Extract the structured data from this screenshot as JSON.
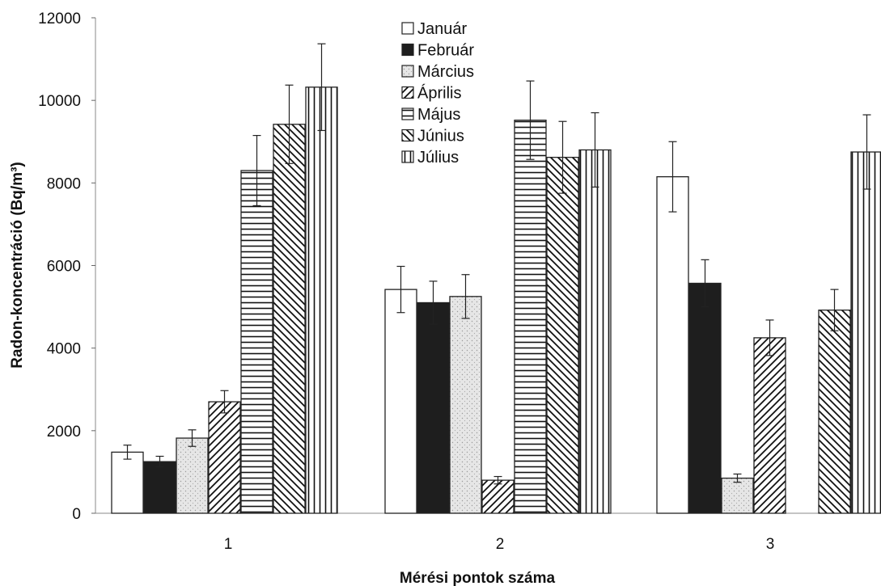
{
  "chart_data": {
    "type": "bar",
    "xlabel": "Mérési pontok száma",
    "ylabel": "Radon-koncentráció (Bq/m³)",
    "ylim": [
      0,
      12000
    ],
    "yticks": [
      "0",
      "2000",
      "4000",
      "6000",
      "8000",
      "10000",
      "12000"
    ],
    "categories": [
      "1",
      "2",
      "3"
    ],
    "legend_position": "top-center",
    "error_bars": true,
    "series": [
      {
        "name": "Január",
        "pattern": "white",
        "values": [
          1480,
          5420,
          8150
        ],
        "errors": [
          170,
          560,
          850
        ]
      },
      {
        "name": "Február",
        "pattern": "black",
        "values": [
          1250,
          5100,
          5570
        ],
        "errors": [
          130,
          520,
          570
        ]
      },
      {
        "name": "Március",
        "pattern": "stipple",
        "values": [
          1820,
          5250,
          850
        ],
        "errors": [
          200,
          530,
          100
        ]
      },
      {
        "name": "Április",
        "pattern": "diag-up",
        "values": [
          2700,
          800,
          4250
        ],
        "errors": [
          270,
          90,
          430
        ]
      },
      {
        "name": "Május",
        "pattern": "horizontal",
        "values": [
          8300,
          9520,
          null
        ],
        "errors": [
          850,
          950,
          null
        ]
      },
      {
        "name": "Június",
        "pattern": "diag-down",
        "values": [
          9420,
          8620,
          4920
        ],
        "errors": [
          950,
          870,
          500
        ]
      },
      {
        "name": "Július",
        "pattern": "vertical",
        "values": [
          10320,
          8800,
          8750
        ],
        "errors": [
          1050,
          900,
          900
        ]
      }
    ]
  }
}
